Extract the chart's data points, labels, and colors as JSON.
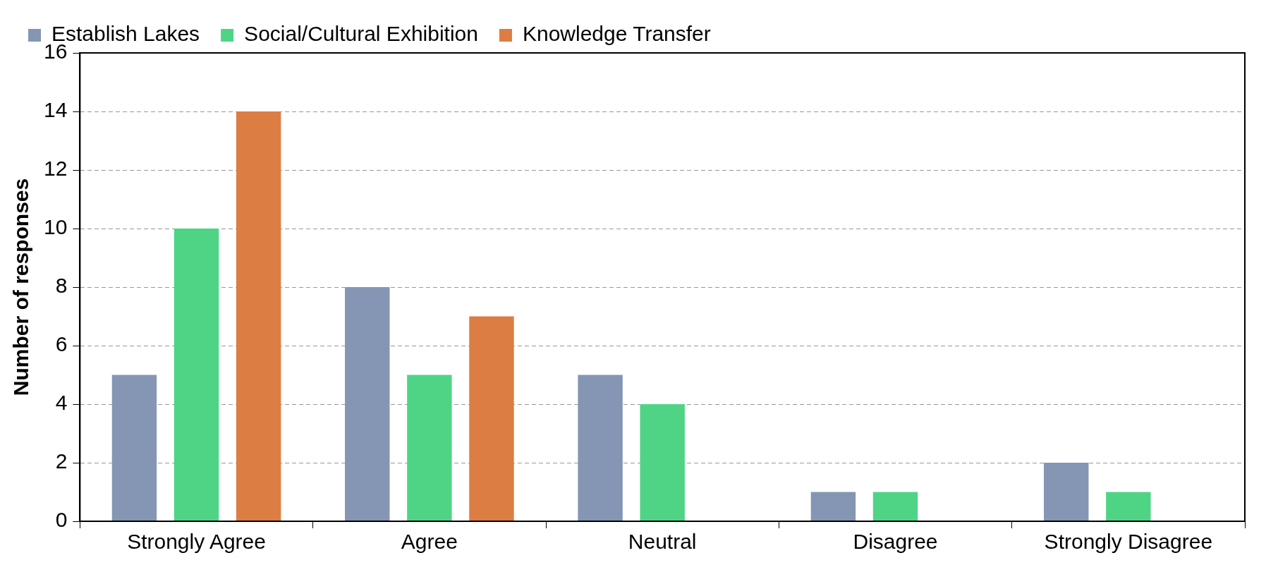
{
  "chart_data": {
    "type": "bar",
    "ylabel": "Number of responses",
    "categories": [
      "Strongly Agree",
      "Agree",
      "Neutral",
      "Disagree",
      "Strongly Disagree"
    ],
    "series": [
      {
        "name": "Establish Lakes",
        "color": "#8496b3",
        "values": [
          5,
          8,
          5,
          1,
          2
        ]
      },
      {
        "name": "Social/Cultural Exhibition",
        "color": "#4fd486",
        "values": [
          10,
          5,
          4,
          1,
          1
        ]
      },
      {
        "name": "Knowledge Transfer",
        "color": "#dc7d44",
        "values": [
          14,
          7,
          0,
          0,
          0
        ]
      }
    ],
    "ylim": [
      0,
      16
    ],
    "yticks": [
      0,
      2,
      4,
      6,
      8,
      10,
      12,
      14,
      16
    ],
    "grid": "y",
    "legend": "top"
  }
}
